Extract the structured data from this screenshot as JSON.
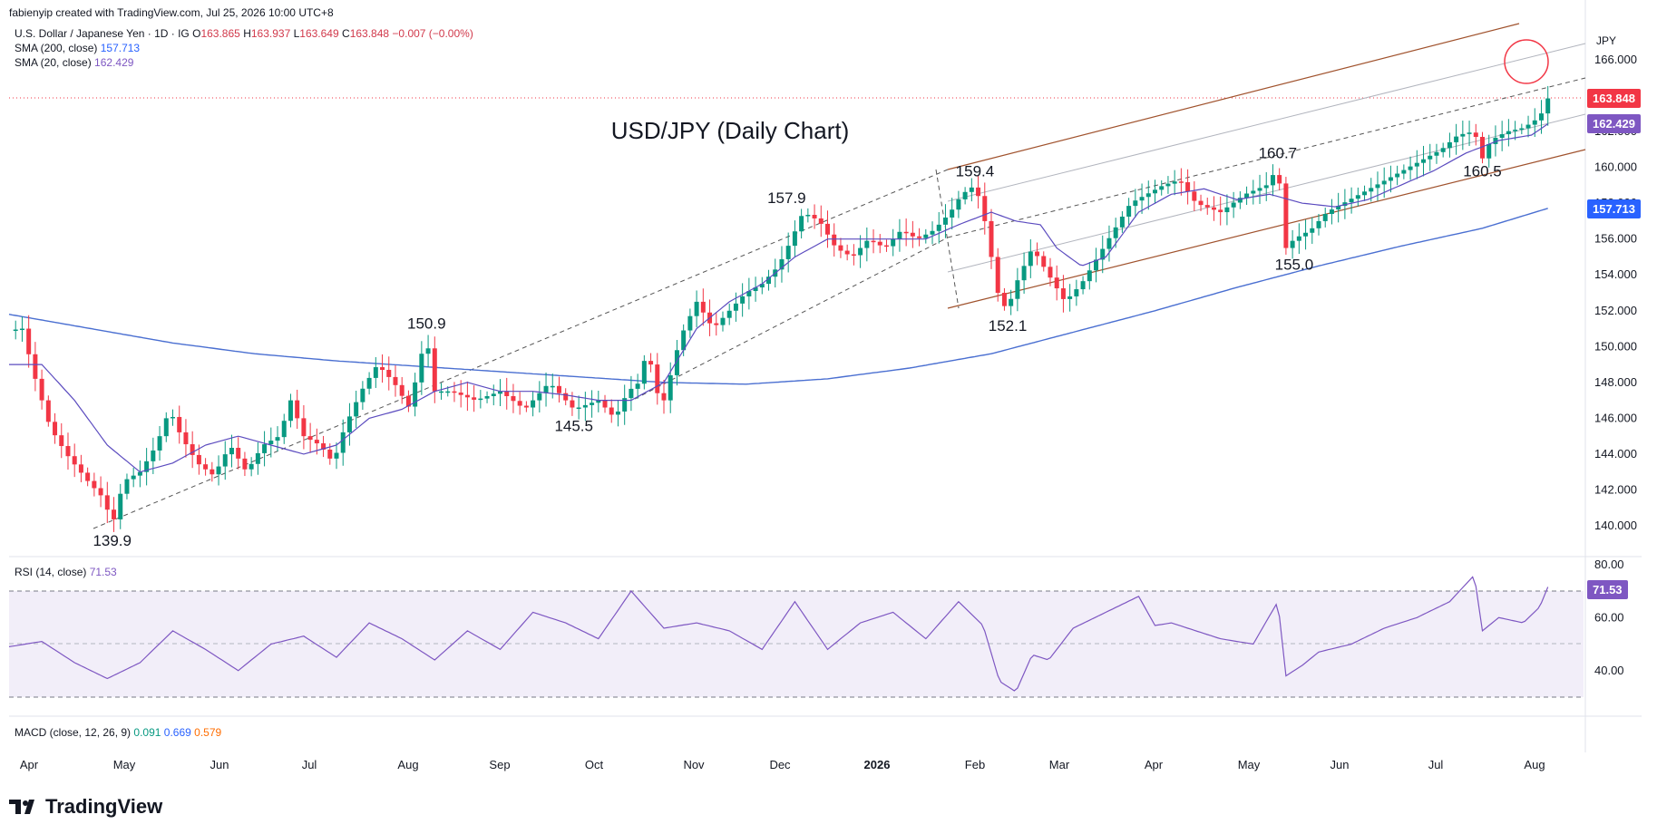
{
  "header": {
    "credit": "fabienyip created with TradingView.com, Jul 25, 2026 10:00 UTC+8",
    "symbol": "U.S. Dollar / Japanese Yen · 1D · IG",
    "ohlc": {
      "o_label": "O",
      "o": "163.865",
      "h_label": "H",
      "h": "163.937",
      "l_label": "L",
      "l": "163.649",
      "c_label": "C",
      "c": "163.848",
      "chg": "−0.007 (−0.00%)"
    },
    "sma200_label": "SMA (200, close)",
    "sma200_value": "157.713",
    "sma20_label": "SMA (20, close)",
    "sma20_value": "162.429",
    "rsi_label": "RSI (14, close)",
    "rsi_value": "71.53",
    "macd_label": "MACD (close, 12, 26, 9)",
    "macd_v1": "0.091",
    "macd_v2": "0.669",
    "macd_v3": "0.579"
  },
  "chart_data": {
    "type": "candlestick",
    "title": "USD/JPY (Daily Chart)",
    "currency": "JPY",
    "y_ticks": [
      "166.000",
      "164.000",
      "162.000",
      "160.000",
      "158.000",
      "156.000",
      "154.000",
      "152.000",
      "150.000",
      "148.000",
      "146.000",
      "144.000",
      "142.000",
      "140.000"
    ],
    "ylim": [
      139.0,
      167.5
    ],
    "x_ticks": [
      "Apr",
      "May",
      "Jun",
      "Jul",
      "Aug",
      "Sep",
      "Oct",
      "Nov",
      "Dec",
      "2026",
      "Feb",
      "Mar",
      "Apr",
      "May",
      "Jun",
      "Jul",
      "Aug"
    ],
    "price_path": [
      [
        0,
        150.9
      ],
      [
        8,
        151.0
      ],
      [
        15,
        148.5
      ],
      [
        25,
        145.5
      ],
      [
        35,
        144.0
      ],
      [
        48,
        142.5
      ],
      [
        58,
        141.5
      ],
      [
        63,
        140.0
      ],
      [
        70,
        142.5
      ],
      [
        80,
        143.0
      ],
      [
        90,
        144.5
      ],
      [
        98,
        146.5
      ],
      [
        105,
        145.0
      ],
      [
        115,
        143.5
      ],
      [
        125,
        142.8
      ],
      [
        135,
        144.5
      ],
      [
        145,
        143.0
      ],
      [
        155,
        144.5
      ],
      [
        165,
        145.0
      ],
      [
        172,
        147.0
      ],
      [
        180,
        145.0
      ],
      [
        190,
        144.5
      ],
      [
        198,
        143.5
      ],
      [
        205,
        145.5
      ],
      [
        215,
        147.5
      ],
      [
        225,
        149.0
      ],
      [
        235,
        148.0
      ],
      [
        245,
        146.5
      ],
      [
        250,
        149.0
      ],
      [
        255,
        150.5
      ],
      [
        260,
        147.5
      ],
      [
        270,
        147.5
      ],
      [
        285,
        147.0
      ],
      [
        300,
        147.5
      ],
      [
        315,
        146.5
      ],
      [
        330,
        148.0
      ],
      [
        345,
        146.5
      ],
      [
        360,
        147.0
      ],
      [
        370,
        146.0
      ],
      [
        378,
        147.5
      ],
      [
        385,
        148.0
      ],
      [
        390,
        150.0
      ],
      [
        395,
        147.5
      ],
      [
        400,
        147.0
      ],
      [
        410,
        150.5
      ],
      [
        420,
        152.5
      ],
      [
        430,
        151.0
      ],
      [
        440,
        152.0
      ],
      [
        450,
        153.0
      ],
      [
        460,
        153.5
      ],
      [
        470,
        154.5
      ],
      [
        478,
        156.0
      ],
      [
        485,
        157.5
      ],
      [
        495,
        157.0
      ],
      [
        505,
        155.5
      ],
      [
        515,
        155.0
      ],
      [
        525,
        156.0
      ],
      [
        535,
        155.5
      ],
      [
        545,
        156.5
      ],
      [
        555,
        156.0
      ],
      [
        565,
        156.5
      ],
      [
        575,
        157.5
      ],
      [
        582,
        158.5
      ],
      [
        590,
        159.0
      ],
      [
        595,
        157.5
      ],
      [
        600,
        155.0
      ],
      [
        605,
        152.5
      ],
      [
        610,
        152.1
      ],
      [
        615,
        153.5
      ],
      [
        625,
        155.5
      ],
      [
        635,
        154.0
      ],
      [
        645,
        152.5
      ],
      [
        655,
        153.5
      ],
      [
        665,
        155.0
      ],
      [
        675,
        156.5
      ],
      [
        685,
        158.0
      ],
      [
        695,
        158.5
      ],
      [
        705,
        159.0
      ],
      [
        715,
        159.3
      ],
      [
        725,
        158.0
      ],
      [
        740,
        157.5
      ],
      [
        755,
        158.5
      ],
      [
        768,
        159.0
      ],
      [
        775,
        160.0
      ],
      [
        780,
        155.5
      ],
      [
        785,
        156.0
      ],
      [
        795,
        156.5
      ],
      [
        805,
        157.5
      ],
      [
        815,
        158.0
      ],
      [
        825,
        158.5
      ],
      [
        835,
        159.0
      ],
      [
        845,
        159.5
      ],
      [
        855,
        160.0
      ],
      [
        865,
        160.5
      ],
      [
        875,
        161.0
      ],
      [
        885,
        161.8
      ],
      [
        895,
        162.0
      ],
      [
        900,
        160.5
      ],
      [
        905,
        161.5
      ],
      [
        915,
        162.0
      ],
      [
        925,
        162.2
      ],
      [
        935,
        162.8
      ],
      [
        940,
        163.848
      ]
    ],
    "sma20_path": [
      [
        0,
        149.0
      ],
      [
        20,
        149.0
      ],
      [
        40,
        147.0
      ],
      [
        60,
        144.5
      ],
      [
        80,
        143.0
      ],
      [
        100,
        143.5
      ],
      [
        120,
        144.5
      ],
      [
        140,
        145.0
      ],
      [
        160,
        144.5
      ],
      [
        180,
        144.0
      ],
      [
        200,
        144.5
      ],
      [
        220,
        146.0
      ],
      [
        240,
        146.5
      ],
      [
        260,
        147.5
      ],
      [
        280,
        148.0
      ],
      [
        300,
        147.5
      ],
      [
        320,
        147.5
      ],
      [
        340,
        147.3
      ],
      [
        360,
        147.0
      ],
      [
        380,
        147.0
      ],
      [
        400,
        148.0
      ],
      [
        420,
        151.0
      ],
      [
        440,
        152.5
      ],
      [
        460,
        153.5
      ],
      [
        480,
        155.0
      ],
      [
        500,
        156.0
      ],
      [
        520,
        156.0
      ],
      [
        540,
        156.0
      ],
      [
        560,
        156.0
      ],
      [
        580,
        156.8
      ],
      [
        600,
        157.5
      ],
      [
        615,
        157.0
      ],
      [
        630,
        156.8
      ],
      [
        640,
        155.5
      ],
      [
        655,
        154.5
      ],
      [
        670,
        155.0
      ],
      [
        690,
        157.5
      ],
      [
        710,
        158.5
      ],
      [
        730,
        158.8
      ],
      [
        750,
        158.2
      ],
      [
        770,
        158.5
      ],
      [
        790,
        158.0
      ],
      [
        810,
        157.8
      ],
      [
        830,
        158.2
      ],
      [
        850,
        159.0
      ],
      [
        870,
        159.8
      ],
      [
        890,
        160.8
      ],
      [
        910,
        161.5
      ],
      [
        930,
        161.8
      ],
      [
        940,
        162.429
      ]
    ],
    "sma200_path": [
      [
        0,
        151.8
      ],
      [
        50,
        151.0
      ],
      [
        100,
        150.2
      ],
      [
        150,
        149.6
      ],
      [
        200,
        149.2
      ],
      [
        250,
        148.9
      ],
      [
        300,
        148.6
      ],
      [
        350,
        148.3
      ],
      [
        400,
        148.0
      ],
      [
        450,
        147.9
      ],
      [
        500,
        148.2
      ],
      [
        550,
        148.8
      ],
      [
        600,
        149.6
      ],
      [
        650,
        150.8
      ],
      [
        700,
        152.0
      ],
      [
        750,
        153.3
      ],
      [
        800,
        154.5
      ],
      [
        850,
        155.6
      ],
      [
        900,
        156.6
      ],
      [
        940,
        157.713
      ]
    ],
    "rsi_path": [
      [
        0,
        49
      ],
      [
        20,
        51
      ],
      [
        40,
        43
      ],
      [
        60,
        37
      ],
      [
        80,
        43
      ],
      [
        100,
        55
      ],
      [
        120,
        48
      ],
      [
        140,
        40
      ],
      [
        160,
        50
      ],
      [
        180,
        53
      ],
      [
        200,
        45
      ],
      [
        220,
        58
      ],
      [
        240,
        52
      ],
      [
        260,
        44
      ],
      [
        280,
        55
      ],
      [
        300,
        48
      ],
      [
        320,
        62
      ],
      [
        340,
        58
      ],
      [
        360,
        52
      ],
      [
        380,
        70
      ],
      [
        400,
        56
      ],
      [
        420,
        58
      ],
      [
        440,
        55
      ],
      [
        460,
        48
      ],
      [
        480,
        66
      ],
      [
        500,
        48
      ],
      [
        520,
        58
      ],
      [
        540,
        62
      ],
      [
        560,
        52
      ],
      [
        580,
        66
      ],
      [
        595,
        57
      ],
      [
        605,
        36
      ],
      [
        615,
        32
      ],
      [
        625,
        46
      ],
      [
        635,
        44
      ],
      [
        650,
        56
      ],
      [
        670,
        62
      ],
      [
        690,
        68
      ],
      [
        700,
        57
      ],
      [
        710,
        58
      ],
      [
        725,
        55
      ],
      [
        740,
        52
      ],
      [
        760,
        50
      ],
      [
        775,
        66
      ],
      [
        780,
        38
      ],
      [
        790,
        42
      ],
      [
        800,
        47
      ],
      [
        820,
        50
      ],
      [
        840,
        56
      ],
      [
        860,
        60
      ],
      [
        880,
        66
      ],
      [
        895,
        76
      ],
      [
        900,
        55
      ],
      [
        910,
        60
      ],
      [
        925,
        58
      ],
      [
        935,
        64
      ],
      [
        940,
        71.53
      ]
    ],
    "rsi_ticks": [
      "80.00",
      "60.00",
      "40.00"
    ],
    "rsi_bands": [
      70,
      50,
      30
    ],
    "annotations": [
      {
        "text": "139.9",
        "x": 63,
        "y": 140.0
      },
      {
        "text": "150.9",
        "x": 255,
        "y": 150.5
      },
      {
        "text": "145.5",
        "x": 345,
        "y": 146.5
      },
      {
        "text": "157.9",
        "x": 475,
        "y": 157.5
      },
      {
        "text": "159.4",
        "x": 590,
        "y": 159.0
      },
      {
        "text": "152.1",
        "x": 610,
        "y": 152.1
      },
      {
        "text": "160.7",
        "x": 775,
        "y": 160.0
      },
      {
        "text": "155.0",
        "x": 785,
        "y": 155.5
      },
      {
        "text": "160.5",
        "x": 900,
        "y": 160.5
      }
    ],
    "price_tags": [
      {
        "label": "163.848",
        "color": "#f23645"
      },
      {
        "label": "162.429",
        "color": "#7e57c2"
      },
      {
        "label": "157.713",
        "color": "#2962ff"
      }
    ],
    "colors": {
      "up": "#089981",
      "down": "#f23645",
      "sma20": "#5b4bbf",
      "sma200": "#4a6fd1",
      "channel": "#a0522d",
      "rsi": "#7e57c2"
    }
  },
  "branding": {
    "logo_text": "TradingView"
  }
}
